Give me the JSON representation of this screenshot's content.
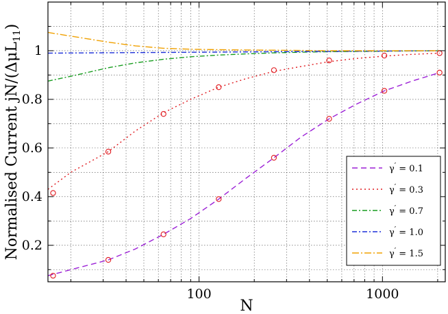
{
  "chart_data": {
    "type": "line",
    "xlabel": "N",
    "ylabel": "Normalised  Current   jN/(ΔμL",
    "ylabel_sub": "11",
    "ylabel_close": ")",
    "xscale": "log",
    "xlim": [
      15,
      2200
    ],
    "ylim": [
      0.05,
      1.2
    ],
    "grid": true,
    "legend_position": "bottom-right",
    "x_ticks": [
      {
        "value": 100,
        "label": "100"
      },
      {
        "value": 1000,
        "label": "1000"
      }
    ],
    "y_ticks": [
      {
        "value": 0.2,
        "label": "0.2"
      },
      {
        "value": 0.4,
        "label": "0.4"
      },
      {
        "value": 0.6,
        "label": "0.6"
      },
      {
        "value": 0.8,
        "label": "0.8"
      },
      {
        "value": 1.0,
        "label": "1"
      }
    ],
    "series": [
      {
        "name": "γ′ = 0.1",
        "legend_symbol": "γ",
        "legend_value": "= 0.1",
        "color": "#9b1fd6",
        "dash": "8,5",
        "x": [
          15,
          20,
          32,
          45,
          64,
          90,
          128,
          180,
          256,
          360,
          512,
          720,
          1024,
          1450,
          2048
        ],
        "y": [
          0.075,
          0.1,
          0.14,
          0.185,
          0.245,
          0.31,
          0.39,
          0.475,
          0.56,
          0.645,
          0.72,
          0.78,
          0.835,
          0.875,
          0.91
        ]
      },
      {
        "name": "γ′ = 0.3",
        "legend_symbol": "γ",
        "legend_value": "= 0.3",
        "color": "#e0191e",
        "dash": "2,4",
        "x": [
          15,
          20,
          32,
          45,
          64,
          90,
          128,
          180,
          256,
          360,
          512,
          720,
          1024,
          1450,
          2048
        ],
        "y": [
          0.43,
          0.5,
          0.585,
          0.67,
          0.745,
          0.8,
          0.85,
          0.885,
          0.915,
          0.935,
          0.955,
          0.968,
          0.978,
          0.985,
          0.99
        ]
      },
      {
        "name": "γ′ = 0.7",
        "legend_symbol": "γ",
        "legend_value": "= 0.7",
        "color": "#179c1e",
        "dash": "7,3,2,3",
        "x": [
          15,
          20,
          32,
          45,
          64,
          90,
          128,
          180,
          256,
          360,
          512,
          720,
          1024,
          1450,
          2048
        ],
        "y": [
          0.875,
          0.895,
          0.93,
          0.95,
          0.965,
          0.975,
          0.982,
          0.987,
          0.991,
          0.994,
          0.996,
          0.997,
          0.998,
          0.999,
          1.0
        ]
      },
      {
        "name": "γ′ = 1.0",
        "legend_symbol": "γ",
        "legend_value": "= 1.0",
        "color": "#1a2ed8",
        "dash": "7,3,2,3",
        "x": [
          15,
          2048
        ],
        "y": [
          0.99,
          1.0
        ]
      },
      {
        "name": "γ′ = 1.5",
        "legend_symbol": "γ",
        "legend_value": "= 1.5",
        "color": "#f0a000",
        "dash": "10,3,2,3",
        "x": [
          15,
          20,
          32,
          45,
          64,
          90,
          128,
          180,
          256,
          360,
          512,
          720,
          1024,
          1450,
          2048
        ],
        "y": [
          1.075,
          1.06,
          1.035,
          1.02,
          1.01,
          1.006,
          1.004,
          1.003,
          1.002,
          1.001,
          1.0,
          1.0,
          1.0,
          1.0,
          1.0
        ]
      }
    ],
    "markers": {
      "color": "#e0191e",
      "x": [
        16,
        32,
        64,
        128,
        256,
        512,
        1024,
        2048,
        16,
        32,
        64,
        128,
        256,
        512,
        1024,
        2048
      ],
      "y": [
        0.075,
        0.14,
        0.245,
        0.39,
        0.56,
        0.72,
        0.835,
        0.91,
        0.415,
        0.585,
        0.74,
        0.85,
        0.92,
        0.96,
        0.98,
        0.99
      ]
    }
  }
}
